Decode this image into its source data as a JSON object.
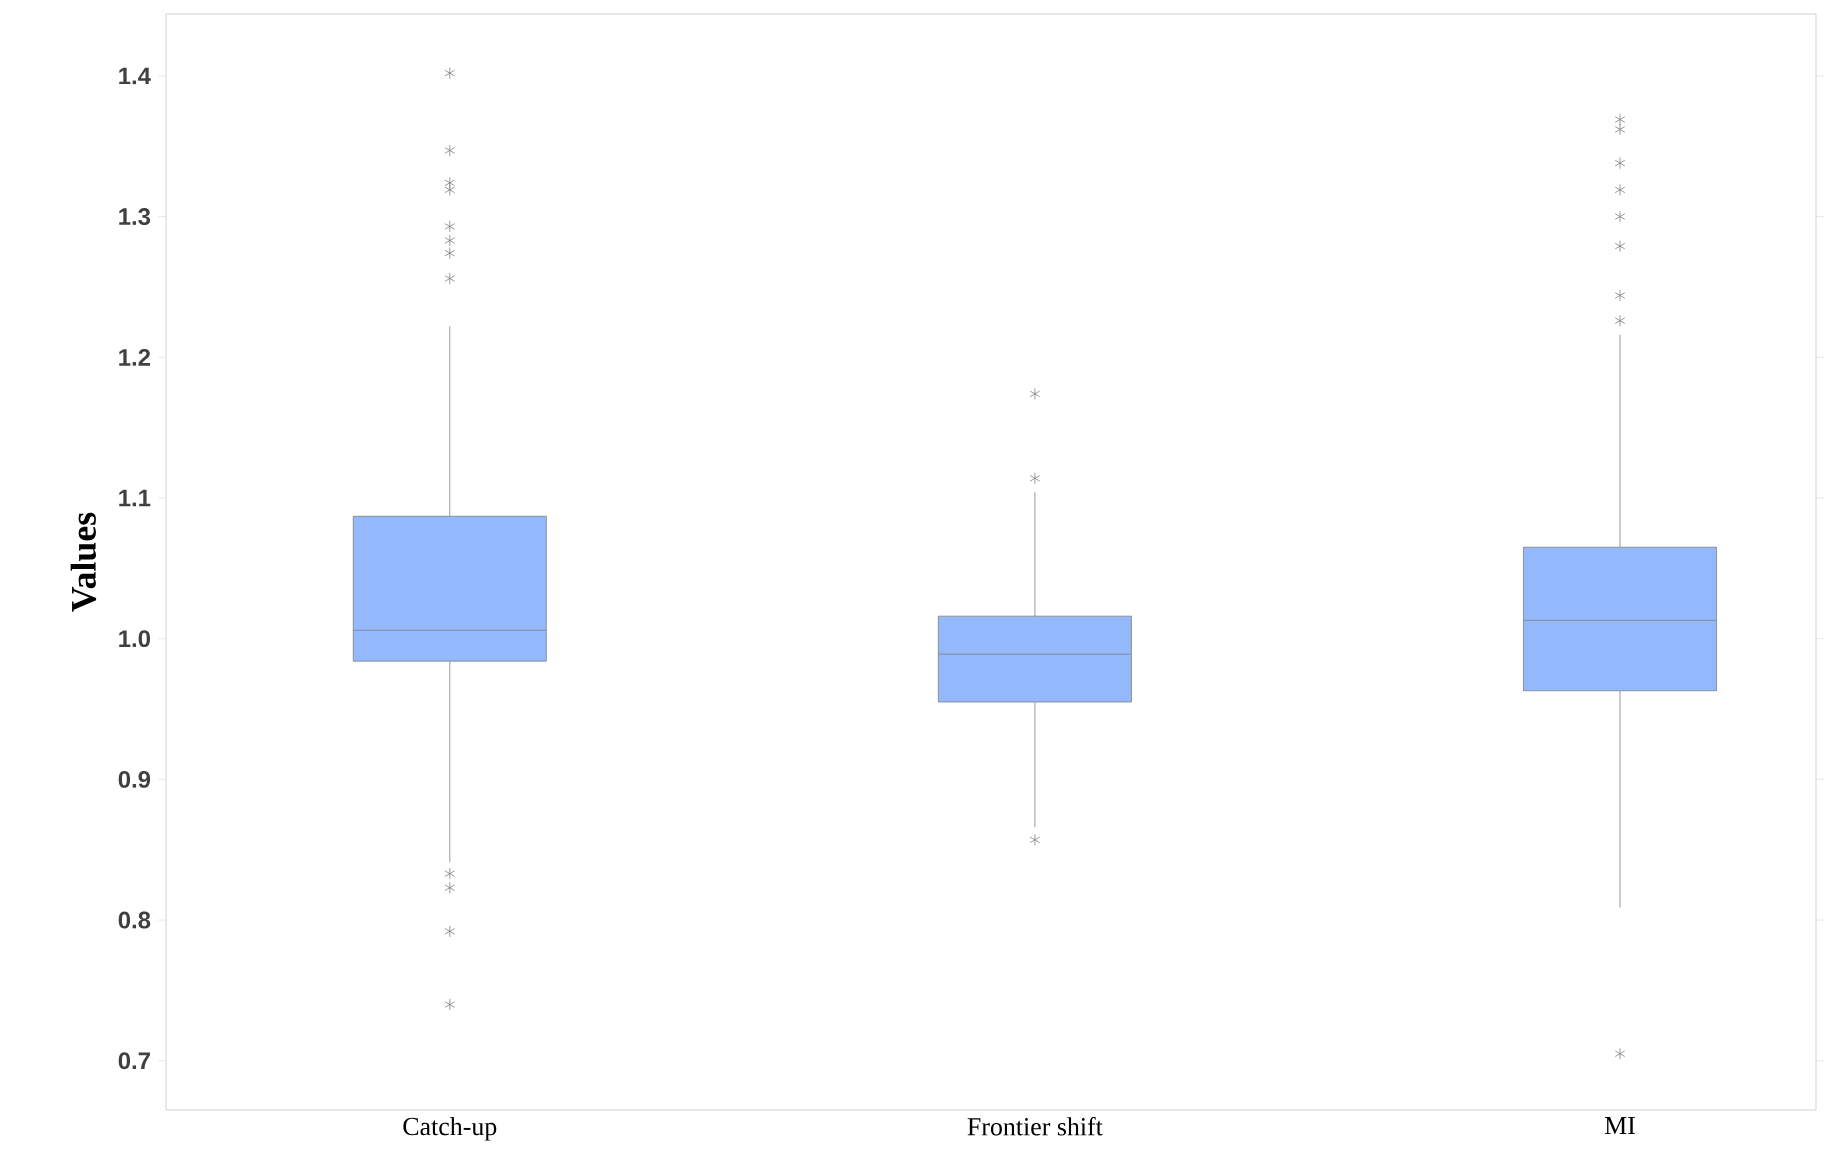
{
  "chart_data": {
    "type": "box",
    "ylabel": "Values",
    "categories": [
      "Catch-up",
      "Frontier shift",
      "MI"
    ],
    "color": "#94b8fc",
    "marker": "star",
    "ylim": [
      0.665,
      1.444
    ],
    "yticks": [
      0.7,
      0.8,
      0.9,
      {
        "value": 1,
        "label": "1.0"
      },
      1.1,
      1.2,
      1.3,
      1.4
    ],
    "boxes": [
      {
        "low": 0.841,
        "q1": 0.984,
        "median": 1.006,
        "q3": 1.087,
        "high": 1.222,
        "outliers": [
          1.402,
          1.347,
          1.324,
          1.319,
          1.293,
          1.283,
          1.274,
          1.256,
          0.833,
          0.823,
          0.792,
          0.74
        ]
      },
      {
        "low": 0.866,
        "q1": 0.955,
        "median": 0.989,
        "q3": 1.016,
        "high": 1.104,
        "outliers": [
          1.174,
          1.114,
          0.857
        ]
      },
      {
        "low": 0.809,
        "q1": 0.963,
        "median": 1.013,
        "q3": 1.065,
        "high": 1.216,
        "outliers": [
          1.369,
          1.362,
          1.338,
          1.319,
          1.3,
          1.279,
          1.244,
          1.226,
          0.705
        ]
      }
    ]
  }
}
